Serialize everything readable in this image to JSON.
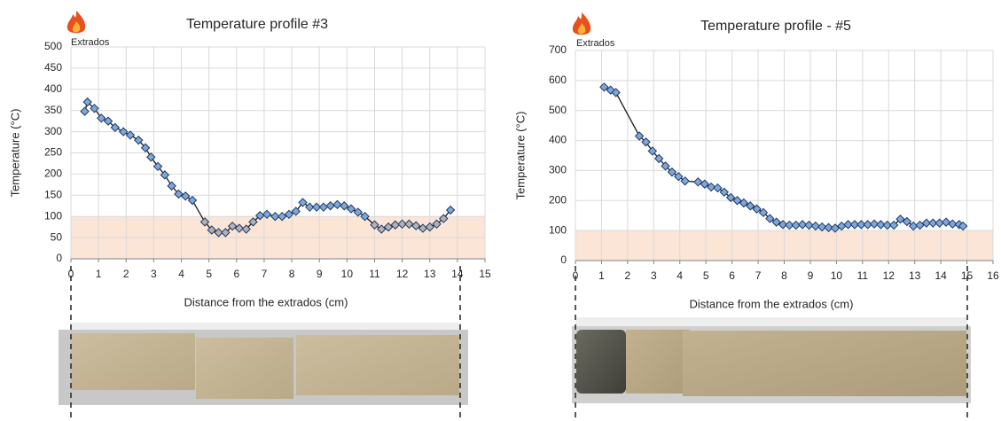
{
  "chart_data": [
    {
      "type": "line",
      "title": "Temperature  profile #3",
      "annotation": "Extrados",
      "x_label": "Distance from the extrados (cm)",
      "y_label": "Temperature (°C)",
      "x": [
        0.5,
        0.6,
        0.85,
        1.1,
        1.35,
        1.6,
        1.9,
        2.15,
        2.45,
        2.7,
        2.9,
        3.15,
        3.4,
        3.65,
        3.9,
        4.15,
        4.4,
        4.85,
        5.1,
        5.35,
        5.6,
        5.85,
        6.1,
        6.35,
        6.6,
        6.85,
        7.1,
        7.4,
        7.65,
        7.9,
        8.15,
        8.4,
        8.65,
        8.9,
        9.15,
        9.4,
        9.65,
        9.9,
        10.15,
        10.4,
        10.65,
        11.0,
        11.25,
        11.5,
        11.75,
        12.0,
        12.25,
        12.5,
        12.75,
        13.0,
        13.25,
        13.5,
        13.75
      ],
      "values": [
        348,
        370,
        355,
        332,
        325,
        310,
        300,
        292,
        280,
        262,
        240,
        218,
        198,
        172,
        153,
        148,
        138,
        87,
        68,
        62,
        62,
        77,
        72,
        70,
        87,
        102,
        105,
        100,
        100,
        105,
        112,
        133,
        122,
        122,
        122,
        125,
        128,
        125,
        118,
        110,
        100,
        80,
        70,
        75,
        80,
        82,
        82,
        78,
        72,
        75,
        82,
        95,
        115
      ],
      "color": "#7fa7d9",
      "band": [
        0,
        100
      ],
      "band_color": "#fbe5d6",
      "band_marker_color": "#b3b3b3",
      "xlim": [
        0,
        15
      ],
      "xticks": [
        0,
        1,
        2,
        3,
        4,
        5,
        6,
        7,
        8,
        9,
        10,
        11,
        12,
        13,
        14,
        15
      ],
      "ylim": [
        0,
        500
      ],
      "yticks": [
        0,
        50,
        100,
        150,
        200,
        250,
        300,
        350,
        400,
        450,
        500
      ],
      "grid": true
    },
    {
      "type": "line",
      "title": "Temperature  profile - #5",
      "annotation": "Extrados",
      "x_label": "Distance from the extrados (cm)",
      "y_label": "Temperature (°C)",
      "x": [
        1.1,
        1.35,
        1.55,
        2.45,
        2.7,
        2.95,
        3.2,
        3.45,
        3.7,
        3.95,
        4.2,
        4.7,
        4.95,
        5.2,
        5.45,
        5.7,
        5.95,
        6.2,
        6.45,
        6.7,
        6.95,
        7.2,
        7.45,
        7.7,
        7.95,
        8.2,
        8.45,
        8.7,
        8.95,
        9.2,
        9.45,
        9.7,
        9.95,
        10.2,
        10.45,
        10.7,
        10.95,
        11.2,
        11.45,
        11.7,
        11.95,
        12.2,
        12.45,
        12.7,
        12.95,
        13.2,
        13.45,
        13.7,
        13.95,
        14.2,
        14.45,
        14.7,
        14.85
      ],
      "values": [
        578,
        568,
        560,
        415,
        395,
        365,
        340,
        315,
        295,
        280,
        265,
        262,
        255,
        245,
        242,
        228,
        210,
        200,
        192,
        182,
        172,
        160,
        140,
        128,
        120,
        118,
        118,
        120,
        118,
        115,
        112,
        110,
        108,
        115,
        120,
        120,
        120,
        120,
        122,
        120,
        118,
        118,
        138,
        130,
        115,
        118,
        125,
        125,
        125,
        128,
        122,
        120,
        115
      ],
      "color": "#7fa7d9",
      "band": [
        0,
        100
      ],
      "band_color": "#fbe5d6",
      "band_marker_color": "#b3b3b3",
      "xlim": [
        0,
        16
      ],
      "xticks": [
        0,
        1,
        2,
        3,
        4,
        5,
        6,
        7,
        8,
        9,
        10,
        11,
        12,
        13,
        14,
        15,
        16
      ],
      "ylim": [
        0,
        700
      ],
      "yticks": [
        0,
        100,
        200,
        300,
        400,
        500,
        600,
        700
      ],
      "grid": true
    }
  ]
}
